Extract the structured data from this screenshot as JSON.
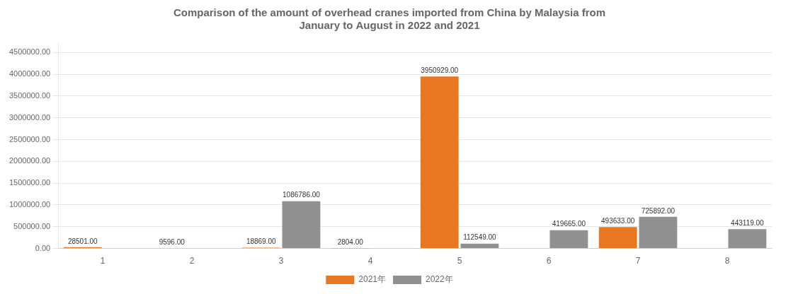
{
  "chart_data": {
    "type": "bar",
    "title": "Comparison of the amount of overhead cranes imported from China by Malaysia from\nJanuary to August in 2022 and 2021",
    "categories": [
      "1",
      "2",
      "3",
      "4",
      "5",
      "6",
      "7",
      "8"
    ],
    "series": [
      {
        "name": "2021年",
        "color": "#E87722",
        "values": [
          28501.0,
          9596.0,
          18869.0,
          2804.0,
          3950929.0,
          0,
          493633.0,
          0
        ],
        "value_labels": [
          "28501.00",
          "9596.00",
          "18869.00",
          "2804.00",
          "3950929.00",
          null,
          "493633.00",
          null
        ]
      },
      {
        "name": "2022年",
        "color": "#909090",
        "values": [
          0,
          0,
          1086786.0,
          0,
          112549.0,
          419665.0,
          725892.0,
          443119.0
        ],
        "value_labels": [
          null,
          null,
          "1086786.00",
          null,
          "112549.00",
          "419665.00",
          "725892.00",
          "443119.00"
        ]
      }
    ],
    "ylim": [
      0,
      4700000
    ],
    "yticks": [
      {
        "value": 0,
        "label": "0.00"
      },
      {
        "value": 500000,
        "label": "500000.00"
      },
      {
        "value": 1000000,
        "label": "1000000.00"
      },
      {
        "value": 1500000,
        "label": "1500000.00"
      },
      {
        "value": 2000000,
        "label": "2000000.00"
      },
      {
        "value": 2500000,
        "label": "2500000.00"
      },
      {
        "value": 3000000,
        "label": "3000000.00"
      },
      {
        "value": 3500000,
        "label": "3500000.00"
      },
      {
        "value": 4000000,
        "label": "4000000.00"
      },
      {
        "value": 4500000,
        "label": "4500000.00"
      }
    ],
    "grid": true,
    "legend": "bottom",
    "data_labels": true
  }
}
